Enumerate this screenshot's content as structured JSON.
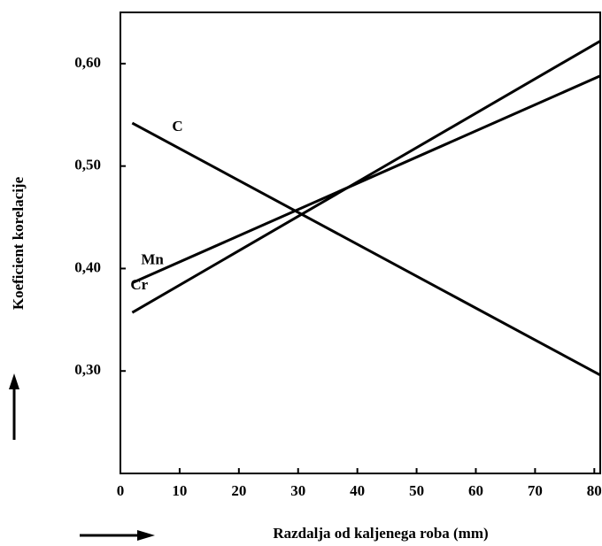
{
  "chart_data": {
    "type": "line",
    "xlabel": "Razdalja od kaljenega roba (mm)",
    "ylabel": "Koeficient korelacije",
    "x": [
      2,
      81
    ],
    "series": [
      {
        "name": "C",
        "color": "#000000",
        "values": [
          0.542,
          0.296
        ]
      },
      {
        "name": "Mn",
        "color": "#000000",
        "values": [
          0.386,
          0.588
        ]
      },
      {
        "name": "Cr",
        "color": "#000000",
        "values": [
          0.357,
          0.622
        ]
      }
    ],
    "xlim": [
      0,
      81
    ],
    "xticks": [
      0,
      10,
      20,
      30,
      40,
      50,
      60,
      70,
      80
    ],
    "ylim": [
      0.2,
      0.65
    ],
    "yticks": [
      {
        "value": 0.3,
        "label": "0,30"
      },
      {
        "value": 0.4,
        "label": "0,40"
      },
      {
        "value": 0.5,
        "label": "0,50"
      },
      {
        "value": 0.6,
        "label": "0,60"
      }
    ],
    "grid": false
  }
}
